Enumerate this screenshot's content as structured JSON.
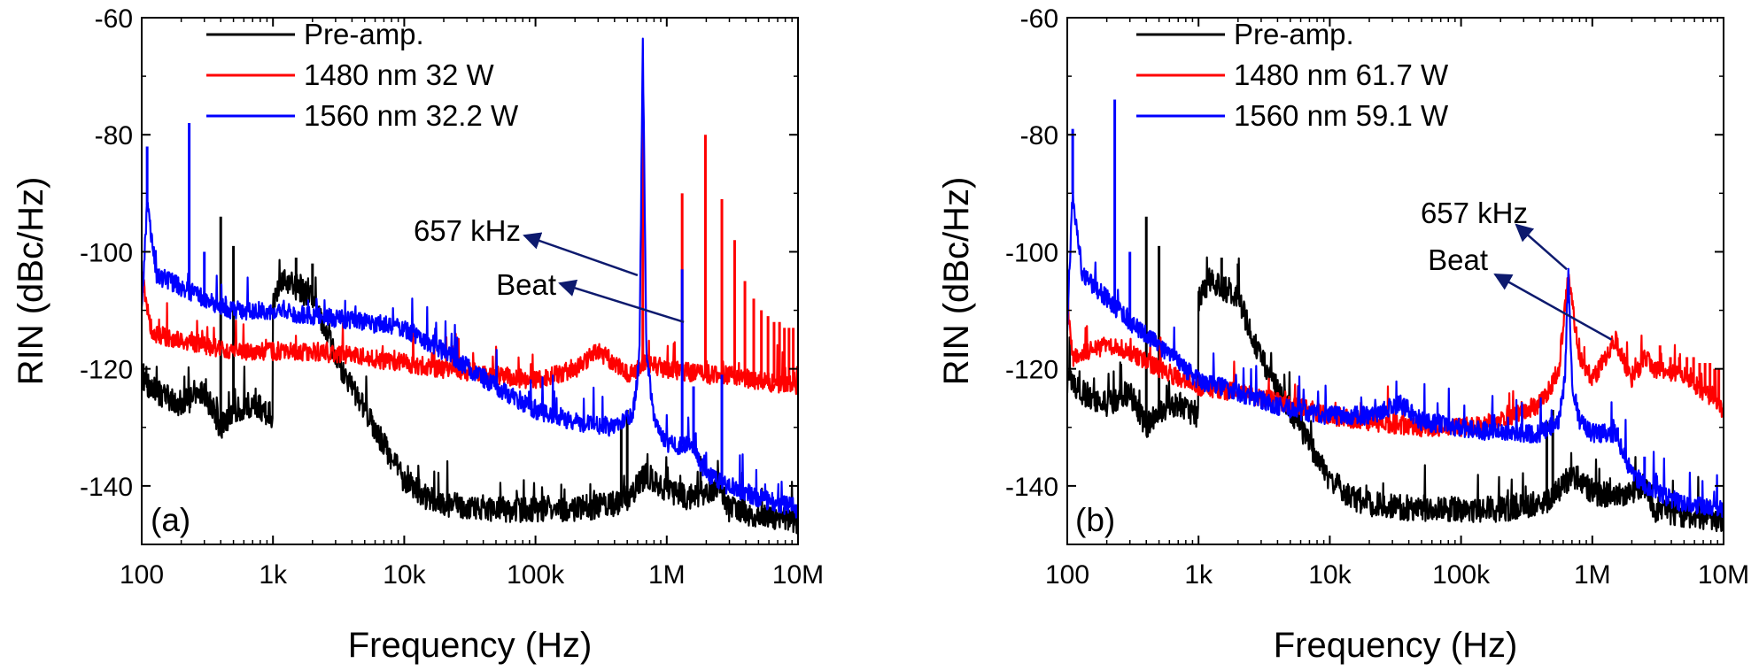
{
  "chart_data": [
    {
      "type": "line",
      "panel_label": "(a)",
      "xlabel": "Frequency (Hz)",
      "ylabel": "RIN (dBc/Hz)",
      "xscale": "log",
      "xlim": [
        100,
        10000000
      ],
      "ylim": [
        -150,
        -60
      ],
      "xticks": [
        100,
        1000,
        10000,
        100000,
        1000000,
        10000000
      ],
      "xtick_labels": [
        "100",
        "1k",
        "10k",
        "100k",
        "1M",
        "10M"
      ],
      "yticks": [
        -140,
        -120,
        -100,
        -80,
        -60
      ],
      "ytick_labels": [
        "-140",
        "-120",
        "-100",
        "-80",
        "-60"
      ],
      "legend_position": "top-left",
      "series": [
        {
          "name": "Pre-amp.",
          "color": "#000000",
          "x": [
            100,
            130,
            200,
            300,
            400,
            500,
            700,
            999,
            1000,
            1200,
            1500,
            2000,
            3000,
            5000,
            7000,
            10000,
            15000,
            20000,
            50000,
            100000,
            200000,
            400000,
            500000,
            700000,
            1000000,
            1500000,
            2000000,
            2500000,
            3000000,
            5000000,
            10000000
          ],
          "y": [
            -122,
            -124,
            -126,
            -124,
            -130,
            -127,
            -126,
            -128,
            -108,
            -105,
            -106,
            -108,
            -118,
            -127,
            -133,
            -139,
            -142,
            -143,
            -144,
            -144,
            -144,
            -143,
            -142,
            -138,
            -141,
            -142,
            -141,
            -140,
            -144,
            -145,
            -146
          ],
          "spikes": [
            {
              "x": 400,
              "y": -94
            },
            {
              "x": 500,
              "y": -99
            },
            {
              "x": 1500,
              "y": -101
            },
            {
              "x": 2000,
              "y": -102
            },
            {
              "x": 450000,
              "y": -129
            },
            {
              "x": 500000,
              "y": -127
            }
          ]
        },
        {
          "name": "1480 nm 32 W",
          "color": "#ff0000",
          "x": [
            100,
            120,
            200,
            300,
            500,
            1000,
            2000,
            5000,
            10000,
            20000,
            50000,
            100000,
            200000,
            300000,
            400000,
            500000,
            700000,
            1000000,
            2000000,
            3000000,
            5000000,
            10000000
          ],
          "y": [
            -104,
            -114,
            -115,
            -116,
            -117,
            -117,
            -117,
            -118,
            -119,
            -120,
            -121,
            -122,
            -120,
            -117,
            -119,
            -121,
            -119,
            -120,
            -121,
            -121,
            -122,
            -123
          ],
          "spikes": [
            {
              "x": 657000,
              "y": -75
            },
            {
              "x": 1310000,
              "y": -90
            },
            {
              "x": 1970000,
              "y": -80
            },
            {
              "x": 2630000,
              "y": -91
            },
            {
              "x": 3290000,
              "y": -98
            },
            {
              "x": 3940000,
              "y": -105
            },
            {
              "x": 4600000,
              "y": -108
            },
            {
              "x": 5260000,
              "y": -110
            },
            {
              "x": 5910000,
              "y": -111
            },
            {
              "x": 6570000,
              "y": -112
            },
            {
              "x": 7230000,
              "y": -112
            },
            {
              "x": 7880000,
              "y": -113
            },
            {
              "x": 8540000,
              "y": -113
            },
            {
              "x": 9200000,
              "y": -113
            }
          ]
        },
        {
          "name": "1560 nm 32.2 W",
          "color": "#0000ff",
          "x": [
            100,
            110,
            130,
            200,
            300,
            500,
            1000,
            2000,
            5000,
            10000,
            20000,
            50000,
            100000,
            200000,
            400000,
            550000,
            620000,
            657000,
            700000,
            800000,
            1000000,
            1500000,
            2000000,
            3000000,
            5000000,
            10000000
          ],
          "y": [
            -110,
            -92,
            -104,
            -106,
            -108,
            -110,
            -110,
            -111,
            -112,
            -113,
            -117,
            -123,
            -127,
            -129,
            -130,
            -128,
            -118,
            -64,
            -118,
            -128,
            -133,
            -133,
            -138,
            -140,
            -142,
            -144
          ],
          "spikes": [
            {
              "x": 110,
              "y": -82
            },
            {
              "x": 230,
              "y": -78
            },
            {
              "x": 300,
              "y": -100
            },
            {
              "x": 1310000,
              "y": -103
            },
            {
              "x": 1600000,
              "y": -123
            },
            {
              "x": 2630000,
              "y": -121
            }
          ]
        }
      ],
      "annotations": [
        {
          "text": "657 kHz",
          "target_x": 600000,
          "target_y": -104
        },
        {
          "text": "Beat",
          "target_x": 1350000,
          "target_y": -112
        }
      ]
    },
    {
      "type": "line",
      "panel_label": "(b)",
      "xlabel": "Frequency (Hz)",
      "ylabel": "RIN (dBc/Hz)",
      "xscale": "log",
      "xlim": [
        100,
        10000000
      ],
      "ylim": [
        -150,
        -60
      ],
      "xticks": [
        100,
        1000,
        10000,
        100000,
        1000000,
        10000000
      ],
      "xtick_labels": [
        "100",
        "1k",
        "10k",
        "100k",
        "1M",
        "10M"
      ],
      "yticks": [
        -140,
        -120,
        -100,
        -80,
        -60
      ],
      "ytick_labels": [
        "-140",
        "-120",
        "-100",
        "-80",
        "-60"
      ],
      "legend_position": "top-left",
      "series": [
        {
          "name": "Pre-amp.",
          "color": "#000000",
          "x": [
            100,
            130,
            200,
            300,
            400,
            500,
            700,
            999,
            1000,
            1200,
            1500,
            2000,
            3000,
            5000,
            7000,
            10000,
            15000,
            20000,
            50000,
            100000,
            200000,
            400000,
            500000,
            700000,
            1000000,
            1500000,
            2000000,
            2500000,
            3000000,
            5000000,
            10000000
          ],
          "y": [
            -122,
            -124,
            -126,
            -124,
            -130,
            -127,
            -126,
            -128,
            -108,
            -105,
            -106,
            -108,
            -118,
            -127,
            -133,
            -139,
            -142,
            -143,
            -144,
            -144,
            -144,
            -143,
            -142,
            -138,
            -141,
            -142,
            -141,
            -140,
            -144,
            -145,
            -146
          ],
          "spikes": [
            {
              "x": 400,
              "y": -94
            },
            {
              "x": 500,
              "y": -99
            },
            {
              "x": 1500,
              "y": -101
            },
            {
              "x": 2000,
              "y": -102
            },
            {
              "x": 450000,
              "y": -129
            },
            {
              "x": 500000,
              "y": -127
            }
          ]
        },
        {
          "name": "1480 nm 61.7 W",
          "color": "#ff0000",
          "x": [
            100,
            110,
            200,
            300,
            500,
            1000,
            2000,
            5000,
            10000,
            20000,
            50000,
            100000,
            200000,
            400000,
            550000,
            657000,
            800000,
            1000000,
            1500000,
            2000000,
            2500000,
            3000000,
            5000000,
            10000000
          ],
          "y": [
            -108,
            -118,
            -116,
            -117,
            -120,
            -123,
            -124,
            -126,
            -128,
            -129,
            -130,
            -130,
            -129,
            -126,
            -121,
            -104,
            -118,
            -122,
            -115,
            -122,
            -118,
            -120,
            -121,
            -127
          ],
          "spikes": [
            {
              "x": 3280000,
              "y": -116
            },
            {
              "x": 3940000,
              "y": -118
            },
            {
              "x": 4600000,
              "y": -118
            },
            {
              "x": 5260000,
              "y": -118
            },
            {
              "x": 5910000,
              "y": -118
            },
            {
              "x": 6570000,
              "y": -119
            },
            {
              "x": 7230000,
              "y": -119
            },
            {
              "x": 7880000,
              "y": -119
            },
            {
              "x": 8540000,
              "y": -120
            },
            {
              "x": 9200000,
              "y": -120
            }
          ]
        },
        {
          "name": "1560 nm 59.1 W",
          "color": "#0000ff",
          "x": [
            100,
            110,
            130,
            200,
            300,
            500,
            1000,
            2000,
            5000,
            10000,
            20000,
            35000,
            50000,
            100000,
            200000,
            400000,
            550000,
            620000,
            657000,
            700000,
            800000,
            1000000,
            1500000,
            2000000,
            3000000,
            5000000,
            10000000
          ],
          "y": [
            -112,
            -90,
            -104,
            -108,
            -112,
            -116,
            -122,
            -124,
            -127,
            -128,
            -128,
            -126,
            -129,
            -130,
            -131,
            -131,
            -129,
            -122,
            -104,
            -122,
            -129,
            -131,
            -131,
            -138,
            -141,
            -143,
            -144
          ],
          "spikes": [
            {
              "x": 110,
              "y": -79
            },
            {
              "x": 230,
              "y": -74
            },
            {
              "x": 300,
              "y": -100
            },
            {
              "x": 1560000,
              "y": -130
            },
            {
              "x": 2500000,
              "y": -135
            }
          ]
        }
      ],
      "annotations": [
        {
          "text": "657 kHz",
          "target_x": 640000,
          "target_y": -103
        },
        {
          "text": "Beat",
          "target_x": 1400000,
          "target_y": -115
        }
      ]
    }
  ]
}
